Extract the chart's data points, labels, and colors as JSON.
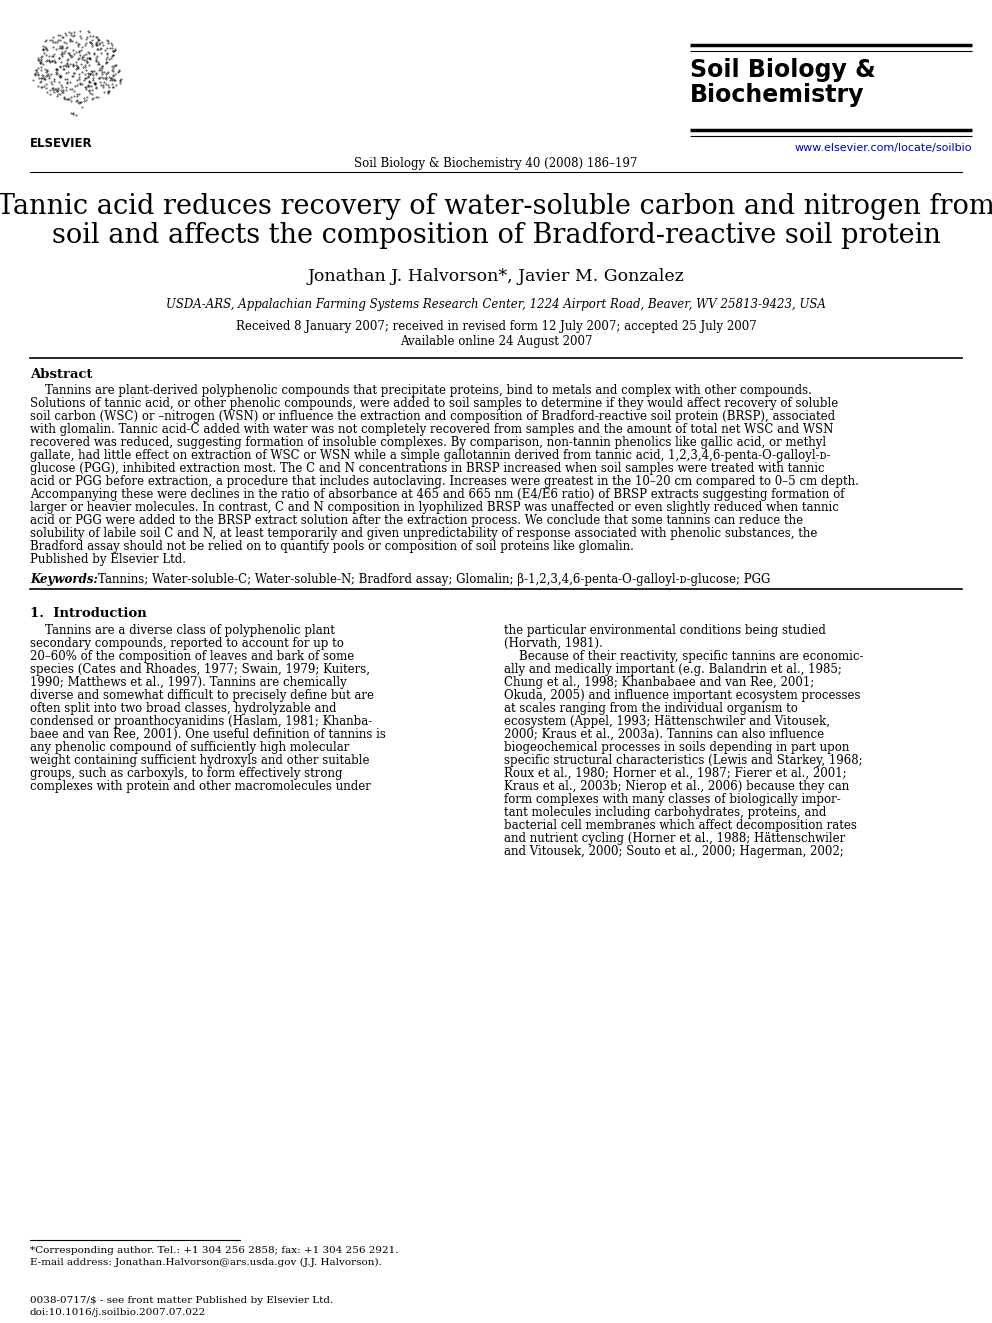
{
  "bg_color": "#ffffff",
  "journal_name_line1": "Soil Biology &",
  "journal_name_line2": "Biochemistry",
  "elsevier_text": "ELSEVIER",
  "journal_ref": "Soil Biology & Biochemistry 40 (2008) 186–197",
  "website": "www.elsevier.com/locate/soilbio",
  "website_color": "#0000bb",
  "paper_title_line1": "Tannic acid reduces recovery of water-soluble carbon and nitrogen from",
  "paper_title_line2": "soil and affects the composition of Bradford-reactive soil protein",
  "authors": "Jonathan J. Halvorson*, Javier M. Gonzalez",
  "affiliation": "USDA-ARS, Appalachian Farming Systems Research Center, 1224 Airport Road, Beaver, WV 25813-9423, USA",
  "received": "Received 8 January 2007; received in revised form 12 July 2007; accepted 25 July 2007",
  "available": "Available online 24 August 2007",
  "abstract_label": "Abstract",
  "keywords_label": "Keywords:",
  "keywords_text": "Tannins; Water-soluble-C; Water-soluble-N; Bradford assay; Glomalin; β-1,2,3,4,6-penta-O-galloyl-ᴅ-glucose; PGG",
  "section1_label": "1.  Introduction",
  "footnote_line1": "*Corresponding author. Tel.: +1 304 256 2858; fax: +1 304 256 2921.",
  "footnote_line2": "E-mail address: Jonathan.Halvorson@ars.usda.gov (J.J. Halvorson).",
  "bottom_line1": "0038-0717/$ - see front matter Published by Elsevier Ltd.",
  "bottom_line2": "doi:10.1016/j.soilbio.2007.07.022",
  "abstract_lines": [
    "    Tannins are plant-derived polyphenolic compounds that precipitate proteins, bind to metals and complex with other compounds.",
    "Solutions of tannic acid, or other phenolic compounds, were added to soil samples to determine if they would affect recovery of soluble",
    "soil carbon (WSC) or –nitrogen (WSN) or influence the extraction and composition of Bradford-reactive soil protein (BRSP), associated",
    "with glomalin. Tannic acid-C added with water was not completely recovered from samples and the amount of total net WSC and WSN",
    "recovered was reduced, suggesting formation of insoluble complexes. By comparison, non-tannin phenolics like gallic acid, or methyl",
    "gallate, had little effect on extraction of WSC or WSN while a simple gallotannin derived from tannic acid, 1,2,3,4,6-penta-O-galloyl-ᴅ-",
    "glucose (PGG), inhibited extraction most. The C and N concentrations in BRSP increased when soil samples were treated with tannic",
    "acid or PGG before extraction, a procedure that includes autoclaving. Increases were greatest in the 10–20 cm compared to 0–5 cm depth.",
    "Accompanying these were declines in the ratio of absorbance at 465 and 665 nm (E4/E6 ratio) of BRSP extracts suggesting formation of",
    "larger or heavier molecules. In contrast, C and N composition in lyophilized BRSP was unaffected or even slightly reduced when tannic",
    "acid or PGG were added to the BRSP extract solution after the extraction process. We conclude that some tannins can reduce the",
    "solubility of labile soil C and N, at least temporarily and given unpredictability of response associated with phenolic substances, the",
    "Bradford assay should not be relied on to quantify pools or composition of soil proteins like glomalin.",
    "Published by Elsevier Ltd."
  ],
  "col1_lines": [
    "    Tannins are a diverse class of polyphenolic plant",
    "secondary compounds, reported to account for up to",
    "20–60% of the composition of leaves and bark of some",
    "species (Cates and Rhoades, 1977; Swain, 1979; Kuiters,",
    "1990; Matthews et al., 1997). Tannins are chemically",
    "diverse and somewhat difficult to precisely define but are",
    "often split into two broad classes, hydrolyzable and",
    "condensed or proanthocyanidins (Haslam, 1981; Khanba-",
    "baee and van Ree, 2001). One useful definition of tannins is",
    "any phenolic compound of sufficiently high molecular",
    "weight containing sufficient hydroxyls and other suitable",
    "groups, such as carboxyls, to form effectively strong",
    "complexes with protein and other macromolecules under"
  ],
  "col2_lines": [
    "the particular environmental conditions being studied",
    "(Horvath, 1981).",
    "    Because of their reactivity, specific tannins are economic-",
    "ally and medically important (e.g. Balandrin et al., 1985;",
    "Chung et al., 1998; Khanbabaee and van Ree, 2001;",
    "Okuda, 2005) and influence important ecosystem processes",
    "at scales ranging from the individual organism to",
    "ecosystem (Appel, 1993; Hättenschwiler and Vitousek,",
    "2000; Kraus et al., 2003a). Tannins can also influence",
    "biogeochemical processes in soils depending in part upon",
    "specific structural characteristics (Lewis and Starkey, 1968;",
    "Roux et al., 1980; Horner et al., 1987; Fierer et al., 2001;",
    "Kraus et al., 2003b; Nierop et al., 2006) because they can",
    "form complexes with many classes of biologically impor-",
    "tant molecules including carbohydrates, proteins, and",
    "bacterial cell membranes which affect decomposition rates",
    "and nutrient cycling (Horner et al., 1988; Hättenschwiler",
    "and Vitousek, 2000; Souto et al., 2000; Hagerman, 2002;"
  ]
}
